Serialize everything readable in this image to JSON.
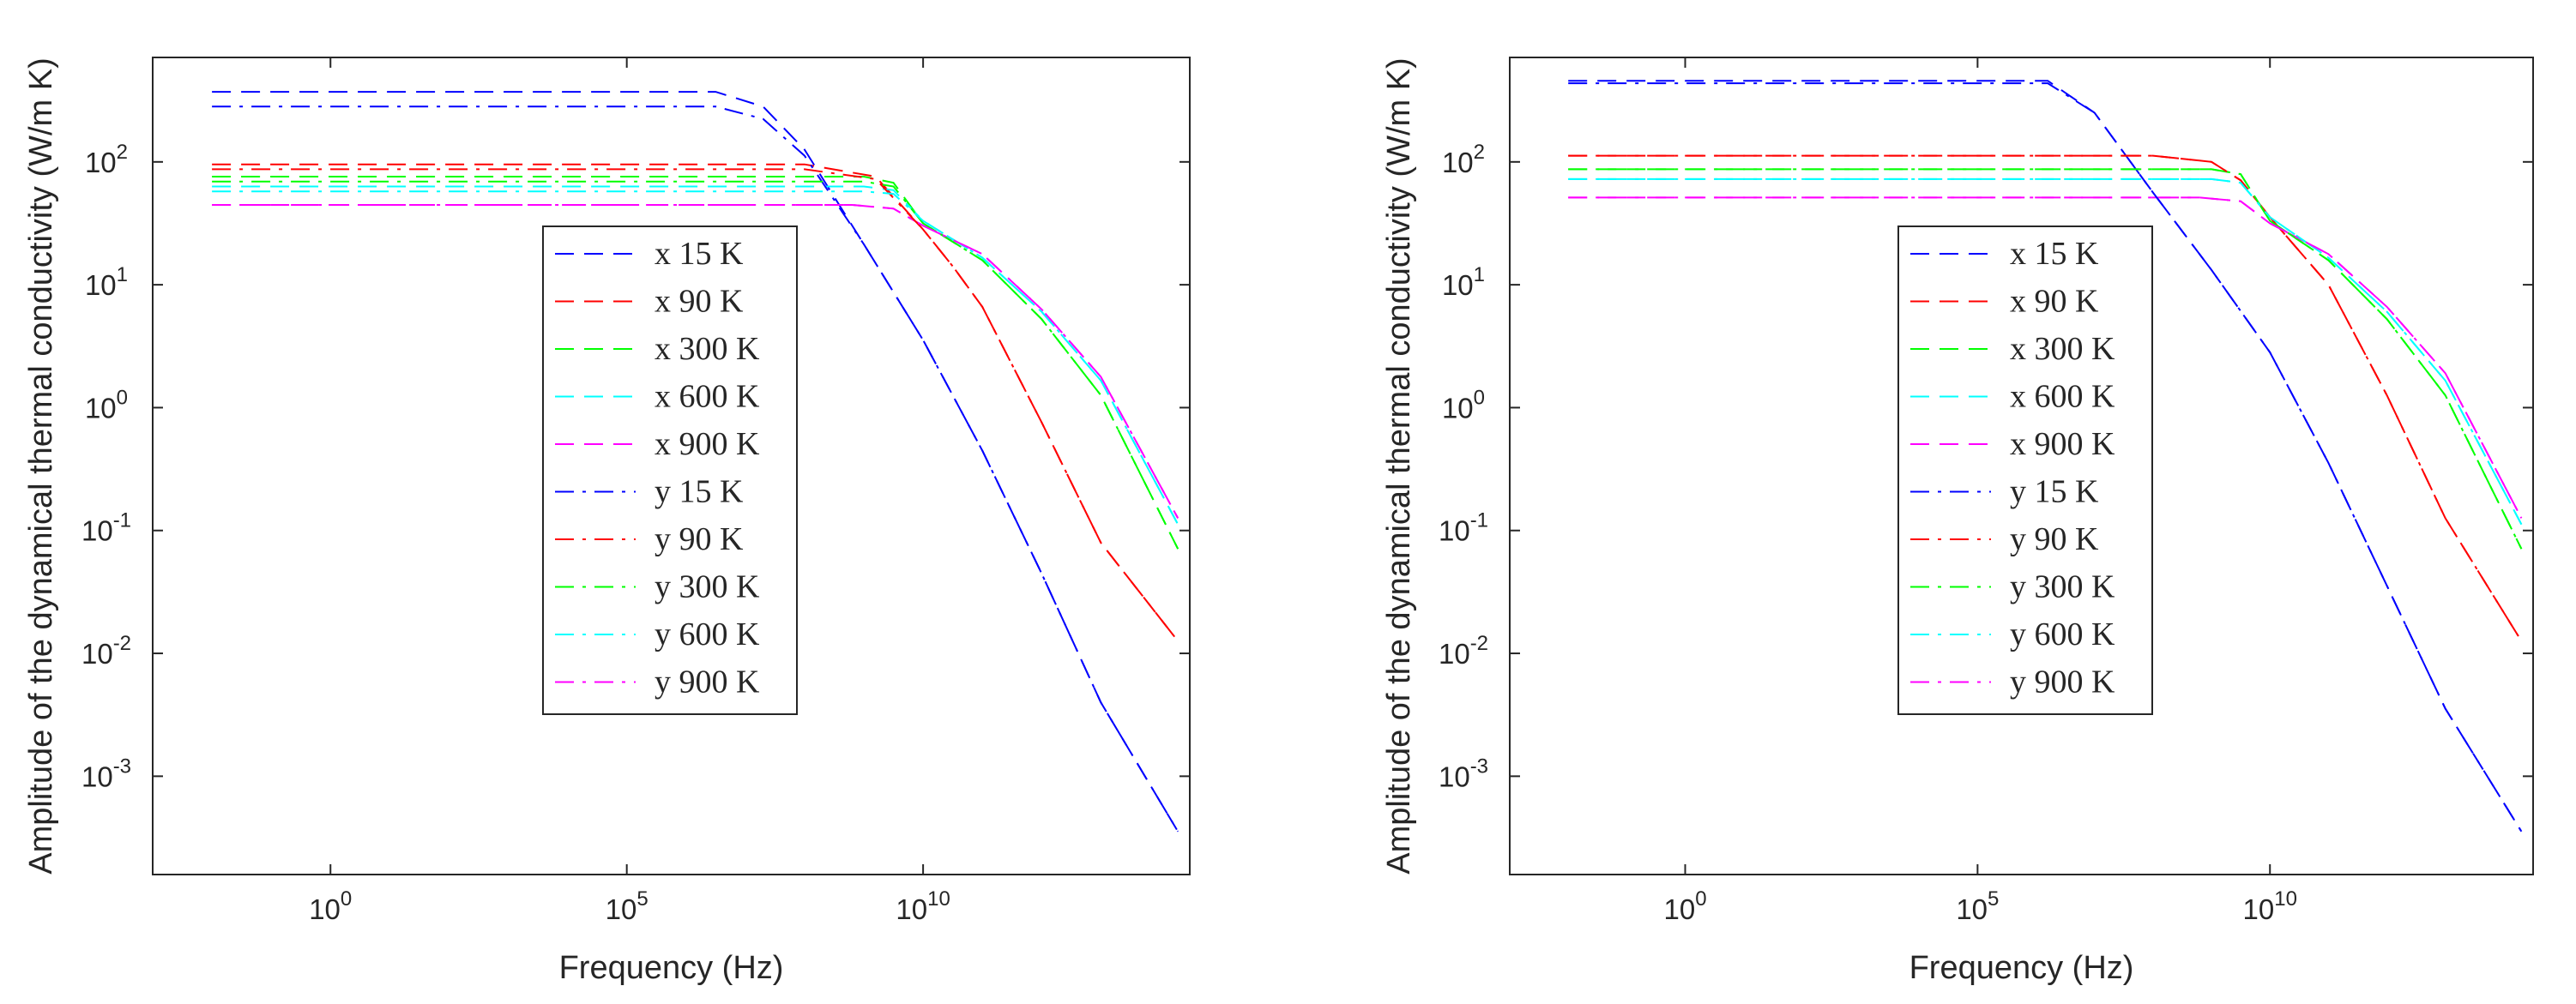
{
  "chart_data": [
    {
      "type": "line",
      "title": "",
      "xlabel": "Frequency (Hz)",
      "ylabel": "Amplitude of the dynamical thermal conductivity (W/m K)",
      "xscale": "log",
      "yscale": "log",
      "xlim_exp": [
        -3,
        14.5
      ],
      "ylim_exp": [
        -3.8,
        2.85
      ],
      "xticks": [
        {
          "exp": 0,
          "label": "10",
          "sup": "0"
        },
        {
          "exp": 5,
          "label": "10",
          "sup": "5"
        },
        {
          "exp": 10,
          "label": "10",
          "sup": "10"
        }
      ],
      "yticks": [
        {
          "exp": -3,
          "label": "10",
          "sup": "-3"
        },
        {
          "exp": -2,
          "label": "10",
          "sup": "-2"
        },
        {
          "exp": -1,
          "label": "10",
          "sup": "-1"
        },
        {
          "exp": 0,
          "label": "10",
          "sup": "0"
        },
        {
          "exp": 1,
          "label": "10",
          "sup": "1"
        },
        {
          "exp": 2,
          "label": "10",
          "sup": "2"
        }
      ],
      "legend_position": "center",
      "series": [
        {
          "name": "x 15 K",
          "color": "#0000ff",
          "dash": "dashed",
          "log_x": [
            -2,
            6.5,
            7.3,
            8,
            9,
            10,
            11,
            12,
            13,
            14.3
          ],
          "log_y": [
            2.57,
            2.57,
            2.45,
            2.1,
            1.33,
            0.55,
            -0.35,
            -1.35,
            -2.4,
            -3.45
          ]
        },
        {
          "name": "x 90 K",
          "color": "#ff0000",
          "dash": "dashed",
          "log_x": [
            -2,
            8,
            9.2,
            10,
            10.5,
            11,
            12,
            13,
            14.3
          ],
          "log_y": [
            1.98,
            1.98,
            1.88,
            1.45,
            1.15,
            0.82,
            -0.12,
            -1.1,
            -1.9
          ]
        },
        {
          "name": "x 300 K",
          "color": "#00ff00",
          "dash": "dashed",
          "log_x": [
            -2,
            9,
            9.5,
            10,
            11,
            12,
            13,
            14.3
          ],
          "log_y": [
            1.88,
            1.88,
            1.83,
            1.5,
            1.2,
            0.72,
            0.1,
            -1.15
          ]
        },
        {
          "name": "x 600 K",
          "color": "#00ffff",
          "dash": "dashed",
          "log_x": [
            -2,
            9,
            9.5,
            10,
            11,
            12,
            13,
            14.3
          ],
          "log_y": [
            1.8,
            1.8,
            1.77,
            1.52,
            1.22,
            0.78,
            0.22,
            -0.95
          ]
        },
        {
          "name": "x 900 K",
          "color": "#ff00ff",
          "dash": "dashed",
          "log_x": [
            -2,
            8.8,
            9.5,
            10,
            11,
            12,
            13,
            14.3
          ],
          "log_y": [
            1.65,
            1.65,
            1.62,
            1.48,
            1.25,
            0.8,
            0.25,
            -0.9
          ]
        },
        {
          "name": "y 15 K",
          "color": "#0000ff",
          "dash": "dashdot",
          "log_x": [
            -2,
            6.5,
            7.3,
            8,
            9,
            10,
            11,
            12,
            13,
            14.3
          ],
          "log_y": [
            2.45,
            2.45,
            2.35,
            2.05,
            1.33,
            0.55,
            -0.35,
            -1.35,
            -2.4,
            -3.45
          ]
        },
        {
          "name": "y 90 K",
          "color": "#ff0000",
          "dash": "dashdot",
          "log_x": [
            -2,
            8,
            9.2,
            10,
            10.5,
            11,
            12,
            13,
            14.3
          ],
          "log_y": [
            1.94,
            1.94,
            1.86,
            1.45,
            1.15,
            0.82,
            -0.12,
            -1.1,
            -1.9
          ]
        },
        {
          "name": "y 300 K",
          "color": "#00ff00",
          "dash": "dashdot",
          "log_x": [
            -2,
            9,
            9.5,
            10,
            11,
            12,
            13,
            14.3
          ],
          "log_y": [
            1.84,
            1.84,
            1.8,
            1.5,
            1.2,
            0.72,
            0.1,
            -1.15
          ]
        },
        {
          "name": "y 600 K",
          "color": "#00ffff",
          "dash": "dashdot",
          "log_x": [
            -2,
            9,
            9.5,
            10,
            11,
            12,
            13,
            14.3
          ],
          "log_y": [
            1.76,
            1.76,
            1.74,
            1.52,
            1.22,
            0.78,
            0.22,
            -0.95
          ]
        },
        {
          "name": "y 900 K",
          "color": "#ff00ff",
          "dash": "dashdot",
          "log_x": [
            -2,
            8.8,
            9.5,
            10,
            11,
            12,
            13,
            14.3
          ],
          "log_y": [
            1.65,
            1.65,
            1.62,
            1.48,
            1.25,
            0.8,
            0.25,
            -0.9
          ]
        }
      ]
    },
    {
      "type": "line",
      "title": "",
      "xlabel": "Frequency (Hz)",
      "ylabel": "Amplitude of the dynamical thermal conductivity (W/m K)",
      "xscale": "log",
      "yscale": "log",
      "xlim_exp": [
        -3,
        14.5
      ],
      "ylim_exp": [
        -3.8,
        2.85
      ],
      "xticks": [
        {
          "exp": 0,
          "label": "10",
          "sup": "0"
        },
        {
          "exp": 5,
          "label": "10",
          "sup": "5"
        },
        {
          "exp": 10,
          "label": "10",
          "sup": "10"
        }
      ],
      "yticks": [
        {
          "exp": -3,
          "label": "10",
          "sup": "-3"
        },
        {
          "exp": -2,
          "label": "10",
          "sup": "-2"
        },
        {
          "exp": -1,
          "label": "10",
          "sup": "-1"
        },
        {
          "exp": 0,
          "label": "10",
          "sup": "0"
        },
        {
          "exp": 1,
          "label": "10",
          "sup": "1"
        },
        {
          "exp": 2,
          "label": "10",
          "sup": "2"
        }
      ],
      "legend_position": "center",
      "series": [
        {
          "name": "x 15 K",
          "color": "#0000ff",
          "dash": "dashed",
          "log_x": [
            -2,
            6.2,
            7,
            8,
            9,
            10,
            11,
            12,
            13,
            14.3
          ],
          "log_y": [
            2.66,
            2.66,
            2.4,
            1.75,
            1.12,
            0.45,
            -0.45,
            -1.45,
            -2.45,
            -3.45
          ]
        },
        {
          "name": "x 90 K",
          "color": "#ff0000",
          "dash": "dashed",
          "log_x": [
            -2,
            8,
            9,
            9.5,
            10,
            11,
            12,
            13,
            14.3
          ],
          "log_y": [
            2.05,
            2.05,
            2.0,
            1.85,
            1.55,
            1.0,
            0.1,
            -0.9,
            -1.9
          ]
        },
        {
          "name": "x 300 K",
          "color": "#00ff00",
          "dash": "dashed",
          "log_x": [
            -2,
            9,
            9.5,
            10,
            11,
            12,
            13,
            14.3
          ],
          "log_y": [
            1.94,
            1.94,
            1.9,
            1.52,
            1.2,
            0.72,
            0.1,
            -1.15
          ]
        },
        {
          "name": "x 600 K",
          "color": "#00ffff",
          "dash": "dashed",
          "log_x": [
            -2,
            9,
            9.5,
            10,
            11,
            12,
            13,
            14.3
          ],
          "log_y": [
            1.86,
            1.86,
            1.83,
            1.55,
            1.22,
            0.78,
            0.22,
            -0.95
          ]
        },
        {
          "name": "x 900 K",
          "color": "#ff00ff",
          "dash": "dashed",
          "log_x": [
            -2,
            8.8,
            9.5,
            10,
            11,
            12,
            13,
            14.3
          ],
          "log_y": [
            1.71,
            1.71,
            1.68,
            1.5,
            1.25,
            0.82,
            0.28,
            -0.9
          ]
        },
        {
          "name": "y 15 K",
          "color": "#0000ff",
          "dash": "dashdot",
          "log_x": [
            -2,
            6.2,
            7,
            8,
            9,
            10,
            11,
            12,
            13,
            14.3
          ],
          "log_y": [
            2.64,
            2.64,
            2.4,
            1.75,
            1.12,
            0.45,
            -0.45,
            -1.45,
            -2.45,
            -3.45
          ]
        },
        {
          "name": "y 90 K",
          "color": "#ff0000",
          "dash": "dashdot",
          "log_x": [
            -2,
            8,
            9,
            9.5,
            10,
            11,
            12,
            13,
            14.3
          ],
          "log_y": [
            2.05,
            2.05,
            2.0,
            1.85,
            1.55,
            1.0,
            0.1,
            -0.9,
            -1.9
          ]
        },
        {
          "name": "y 300 K",
          "color": "#00ff00",
          "dash": "dashdot",
          "log_x": [
            -2,
            9,
            9.5,
            10,
            11,
            12,
            13,
            14.3
          ],
          "log_y": [
            1.94,
            1.94,
            1.9,
            1.52,
            1.2,
            0.72,
            0.1,
            -1.15
          ]
        },
        {
          "name": "y 600 K",
          "color": "#00ffff",
          "dash": "dashdot",
          "log_x": [
            -2,
            9,
            9.5,
            10,
            11,
            12,
            13,
            14.3
          ],
          "log_y": [
            1.86,
            1.86,
            1.83,
            1.55,
            1.22,
            0.78,
            0.22,
            -0.95
          ]
        },
        {
          "name": "y 900 K",
          "color": "#ff00ff",
          "dash": "dashdot",
          "log_x": [
            -2,
            8.8,
            9.5,
            10,
            11,
            12,
            13,
            14.3
          ],
          "log_y": [
            1.71,
            1.71,
            1.68,
            1.5,
            1.25,
            0.82,
            0.28,
            -0.9
          ]
        }
      ]
    }
  ]
}
